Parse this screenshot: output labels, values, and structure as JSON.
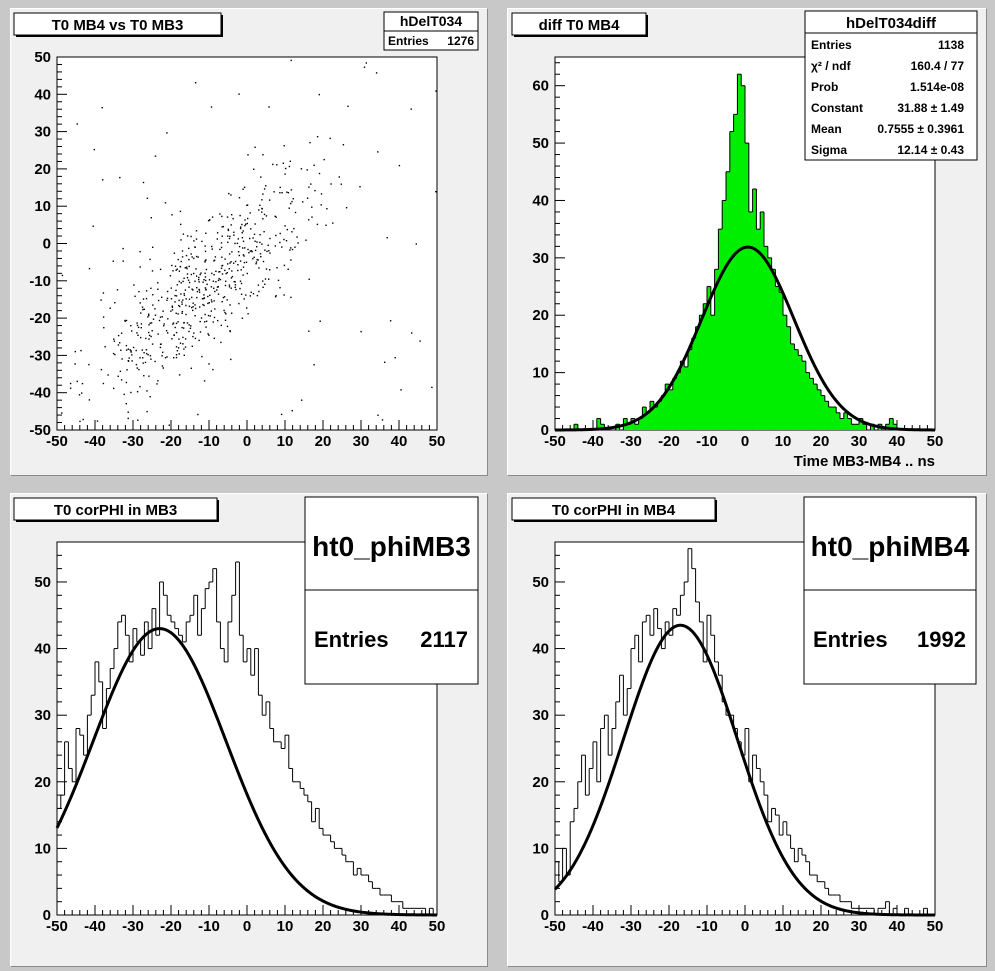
{
  "colors": {
    "canvas": "#c8c8c8",
    "pad": "#f0f0f0",
    "frame": "#ffffff",
    "hist_fill": "#00ee00",
    "line": "#000000"
  },
  "chart_data": [
    {
      "type": "scatter",
      "title": "T0 MB4 vs T0 MB3",
      "stats": {
        "name": "hDelT034",
        "rows": [
          {
            "label": "Entries",
            "value": "1276"
          }
        ]
      },
      "xlim": [
        -50,
        50
      ],
      "ylim": [
        -50,
        50
      ],
      "xticks": [
        "-50",
        "-40",
        "-30",
        "-20",
        "-10",
        "0",
        "10",
        "20",
        "30",
        "40",
        "50"
      ],
      "yticks": [
        "-50",
        "-40",
        "-30",
        "-20",
        "-10",
        "0",
        "10",
        "20",
        "30",
        "40",
        "50"
      ],
      "xlabel": "",
      "ylabel": "",
      "points_summary": {
        "count": 1276,
        "correlation": "positive",
        "center": [
          -12,
          -12
        ],
        "spread": [
          14,
          14
        ]
      }
    },
    {
      "type": "histogram",
      "title": "diff T0 MB4",
      "xlabel": "Time MB3-MB4  ..  ns",
      "ylabel": "",
      "xlim": [
        -50,
        50
      ],
      "ylim": [
        0,
        65
      ],
      "xticks": [
        "-50",
        "-40",
        "-30",
        "-20",
        "-10",
        "0",
        "10",
        "20",
        "30",
        "40",
        "50"
      ],
      "yticks": [
        "0",
        "10",
        "20",
        "30",
        "40",
        "50",
        "60"
      ],
      "bin_width": 1,
      "stats": {
        "name": "hDelT034diff",
        "rows": [
          {
            "label": "Entries",
            "value": "1138"
          },
          {
            "label": "χ² / ndf",
            "value": "160.4 / 77"
          },
          {
            "label": "Prob",
            "value": "1.514e-08"
          },
          {
            "label": "Constant",
            "value": "31.88 ± 1.49"
          },
          {
            "label": "Mean",
            "value": "0.7555 ± 0.3961"
          },
          {
            "label": "Sigma",
            "value": "12.14 ± 0.43"
          }
        ]
      },
      "values": [
        0,
        0,
        0,
        0,
        0,
        1,
        0,
        0,
        0,
        0,
        0,
        2,
        1,
        0,
        0,
        0,
        1,
        0,
        2,
        1,
        2,
        1,
        2,
        4,
        3,
        5,
        4,
        5,
        6,
        8,
        7,
        9,
        10,
        12,
        11,
        14,
        16,
        18,
        20,
        22,
        25,
        20,
        28,
        35,
        40,
        45,
        52,
        55,
        62,
        60,
        50,
        38,
        42,
        35,
        38,
        32,
        30,
        28,
        25,
        24,
        20,
        18,
        15,
        14,
        13,
        12,
        10,
        9,
        8,
        7,
        6,
        5,
        4,
        4,
        3,
        2,
        3,
        2,
        1,
        1,
        2,
        1,
        0,
        1,
        0,
        1,
        0,
        1,
        2,
        1,
        0,
        0,
        0,
        0,
        0,
        0,
        0,
        0,
        0,
        0
      ],
      "fit": {
        "type": "gaus",
        "constant": 31.88,
        "mean": 0.7555,
        "sigma": 12.14
      }
    },
    {
      "type": "histogram",
      "title": "T0 corPHI in MB3",
      "xlabel": "",
      "ylabel": "",
      "xlim": [
        -50,
        50
      ],
      "ylim": [
        0,
        56
      ],
      "xticks": [
        "-50",
        "-40",
        "-30",
        "-20",
        "-10",
        "0",
        "10",
        "20",
        "30",
        "40",
        "50"
      ],
      "yticks": [
        "0",
        "10",
        "20",
        "30",
        "40",
        "50"
      ],
      "bin_width": 1,
      "stats": {
        "name": "ht0_phiMB3",
        "rows": [
          {
            "label": "Entries",
            "value": "2117"
          }
        ]
      },
      "values": [
        16,
        18,
        26,
        22,
        20,
        28,
        27,
        24,
        30,
        33,
        38,
        35,
        28,
        34,
        37,
        40,
        44,
        45,
        42,
        38,
        43,
        41,
        39,
        44,
        40,
        46,
        42,
        50,
        48,
        45,
        44,
        43,
        42,
        41,
        44,
        45,
        48,
        42,
        46,
        49,
        50,
        52,
        44,
        40,
        38,
        44,
        48,
        53,
        42,
        38,
        40,
        36,
        40,
        33,
        30,
        32,
        28,
        26,
        26,
        25,
        27,
        22,
        20,
        20,
        19,
        18,
        17,
        14,
        16,
        13,
        12,
        12,
        11,
        10,
        10,
        9,
        8,
        8,
        6,
        7,
        6,
        6,
        5,
        4,
        4,
        3,
        3,
        3,
        2,
        2,
        2,
        1,
        1,
        1,
        1,
        1,
        1,
        0,
        1,
        0
      ],
      "fit": {
        "type": "gaus",
        "constant": 43,
        "mean": -23,
        "sigma": 17.5
      }
    },
    {
      "type": "histogram",
      "title": "T0 corPHI in MB4",
      "xlabel": "",
      "ylabel": "",
      "xlim": [
        -50,
        50
      ],
      "ylim": [
        0,
        56
      ],
      "xticks": [
        "-50",
        "-40",
        "-30",
        "-20",
        "-10",
        "0",
        "10",
        "20",
        "30",
        "40",
        "50"
      ],
      "yticks": [
        "0",
        "10",
        "20",
        "30",
        "40",
        "50"
      ],
      "bin_width": 1,
      "stats": {
        "name": "ht0_phiMB4",
        "rows": [
          {
            "label": "Entries",
            "value": "1992"
          }
        ]
      },
      "values": [
        8,
        5,
        10,
        6,
        14,
        16,
        20,
        24,
        18,
        22,
        26,
        20,
        28,
        30,
        24,
        28,
        32,
        36,
        30,
        34,
        40,
        42,
        38,
        44,
        45,
        42,
        46,
        43,
        40,
        44,
        42,
        46,
        45,
        48,
        50,
        55,
        52,
        47,
        44,
        38,
        45,
        42,
        38,
        36,
        32,
        30,
        30,
        28,
        26,
        24,
        28,
        20,
        24,
        22,
        20,
        18,
        14,
        16,
        15,
        12,
        14,
        12,
        10,
        8,
        10,
        9,
        8,
        6,
        6,
        5,
        5,
        4,
        3,
        3,
        3,
        2,
        2,
        2,
        1,
        1,
        1,
        1,
        1,
        1,
        0,
        1,
        1,
        2,
        0,
        1,
        0,
        0,
        1,
        0,
        0,
        0,
        0,
        1,
        0,
        0
      ],
      "fit": {
        "type": "gaus",
        "constant": 43.5,
        "mean": -17,
        "sigma": 15
      }
    }
  ]
}
